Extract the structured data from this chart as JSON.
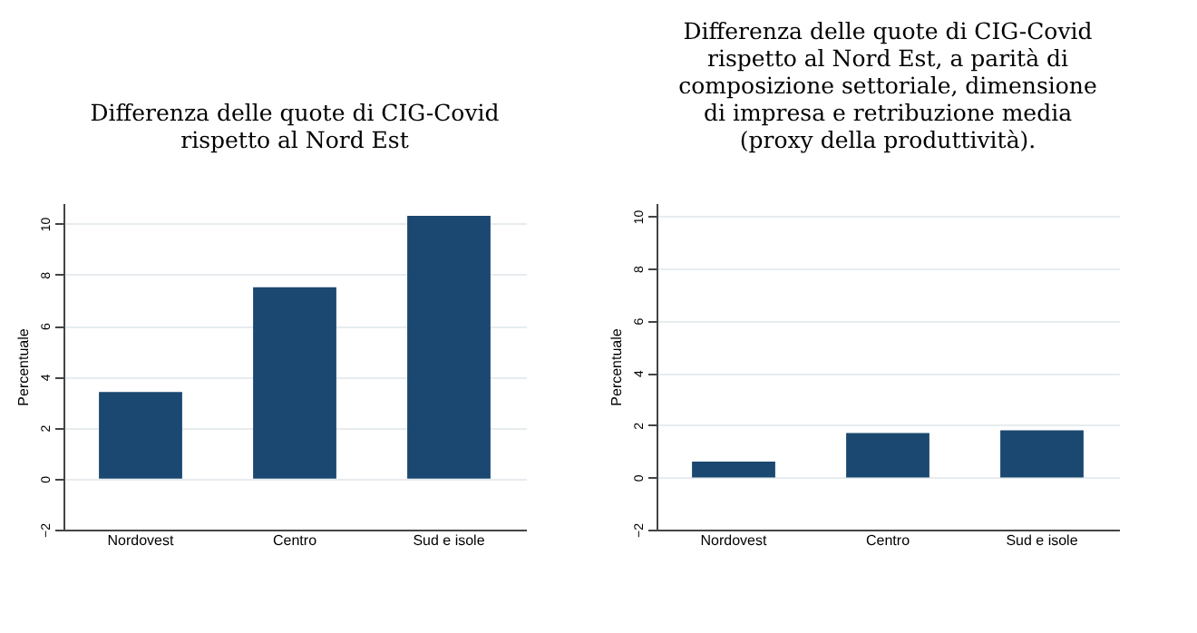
{
  "chart_data": [
    {
      "type": "bar",
      "title": "Differenza delle quote di CIG-Covid\nrispetto al Nord Est",
      "ylabel": "Percentuale",
      "categories": [
        "Nordovest",
        "Centro",
        "Sud e isole"
      ],
      "values": [
        3.4,
        7.5,
        10.3
      ],
      "color": "#1b4870",
      "ylim": [
        -2,
        10.8
      ],
      "yticks": [
        -2,
        0,
        2,
        4,
        6,
        8,
        10
      ],
      "grid": "y"
    },
    {
      "type": "bar",
      "title": "Differenza delle quote di CIG-Covid\nrispetto al Nord Est, a parità di\ncomposizione settoriale, dimensione\ndi impresa e retribuzione media\n(proxy della produttività).",
      "ylabel": "Percentuale",
      "categories": [
        "Nordovest",
        "Centro",
        "Sud e isole"
      ],
      "values": [
        0.6,
        1.7,
        1.8
      ],
      "color": "#1b4870",
      "ylim": [
        -2,
        10.5
      ],
      "yticks": [
        -2,
        0,
        2,
        4,
        6,
        8,
        10
      ],
      "grid": "y"
    }
  ]
}
